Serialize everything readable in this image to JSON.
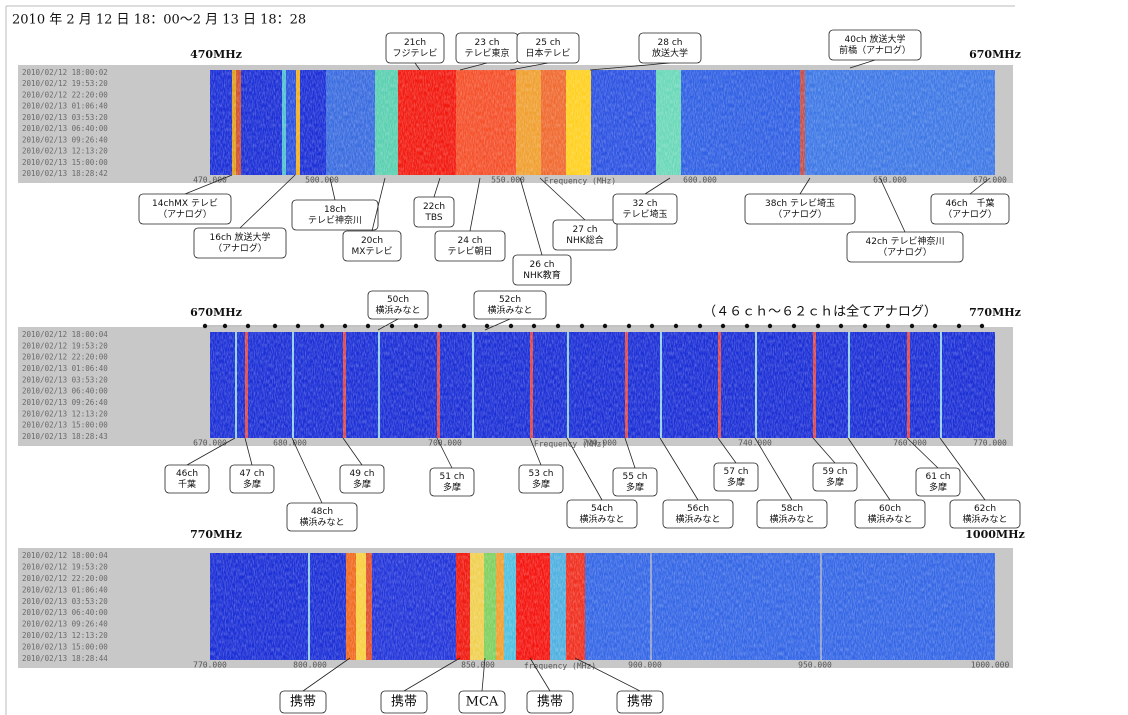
{
  "title": "2010 年 2 月 12 日 18：00～2 月 13 日 18：28",
  "panels": [
    {
      "band_start": "470MHz",
      "band_end": "670MHz",
      "timestamps": [
        "2010/02/12 18:00:02",
        "2010/02/12 19:53:20",
        "2010/02/12 22:20:00",
        "2010/02/13 01:06:40",
        "2010/02/13 03:53:20",
        "2010/02/13 06:40:00",
        "2010/02/13 09:26:40",
        "2010/02/13 12:13:20",
        "2010/02/13 15:00:00",
        "2010/02/13 18:28:42"
      ],
      "x_ticks": [
        "470.000",
        "500.000",
        "550.000",
        "600.000",
        "650.000",
        "670.000"
      ],
      "x_axis_label": "Frequency (MHz)",
      "callouts": [
        {
          "lines": [
            "21ch",
            "フジテレビ"
          ]
        },
        {
          "lines": [
            "23 ch",
            "テレビ東京"
          ]
        },
        {
          "lines": [
            "25 ch",
            "日本テレビ"
          ]
        },
        {
          "lines": [
            "28 ch",
            "放送大学"
          ]
        },
        {
          "lines": [
            "40ch 放送大学",
            "前橋（アナログ）"
          ]
        },
        {
          "lines": [
            "14chMX テレビ",
            "（アナログ）"
          ]
        },
        {
          "lines": [
            "16ch 放送大学",
            "（アナログ）"
          ]
        },
        {
          "lines": [
            "18ch",
            "テレビ神奈川"
          ]
        },
        {
          "lines": [
            "20ch",
            "MXテレビ"
          ]
        },
        {
          "lines": [
            "22ch",
            "TBS"
          ]
        },
        {
          "lines": [
            "24 ch",
            "テレビ朝日"
          ]
        },
        {
          "lines": [
            "26 ch",
            "NHK教育"
          ]
        },
        {
          "lines": [
            "27 ch",
            "NHK総合"
          ]
        },
        {
          "lines": [
            "32 ch",
            "テレビ埼玉"
          ]
        },
        {
          "lines": [
            "38ch テレビ埼玉",
            "（アナログ）"
          ]
        },
        {
          "lines": [
            "42ch テレビ神奈川",
            "（アナログ）"
          ]
        },
        {
          "lines": [
            "46ch　千葉",
            "（アナログ）"
          ]
        }
      ]
    },
    {
      "band_start": "670MHz",
      "band_end": "770MHz",
      "note": "（４６ｃｈ～６２ｃｈは全てアナログ）",
      "timestamps": [
        "2010/02/12 18:00:04",
        "2010/02/12 19:53:20",
        "2010/02/12 22:20:00",
        "2010/02/13 01:06:40",
        "2010/02/13 03:53:20",
        "2010/02/13 06:40:00",
        "2010/02/13 09:26:40",
        "2010/02/13 12:13:20",
        "2010/02/13 15:00:00",
        "2010/02/13 18:28:43"
      ],
      "x_ticks": [
        "670.000",
        "680.000",
        "700.000",
        "720.000",
        "740.000",
        "760.000",
        "770.000"
      ],
      "x_axis_label": "Frequency (MHz)",
      "callouts": [
        {
          "lines": [
            "50ch",
            "横浜みなと"
          ]
        },
        {
          "lines": [
            "52ch",
            "横浜みなと"
          ]
        },
        {
          "lines": [
            "46ch",
            "千葉"
          ]
        },
        {
          "lines": [
            "47 ch",
            "多摩"
          ]
        },
        {
          "lines": [
            "48ch",
            "横浜みなと"
          ]
        },
        {
          "lines": [
            "49 ch",
            "多摩"
          ]
        },
        {
          "lines": [
            "51 ch",
            "多摩"
          ]
        },
        {
          "lines": [
            "53 ch",
            "多摩"
          ]
        },
        {
          "lines": [
            "54ch",
            "横浜みなと"
          ]
        },
        {
          "lines": [
            "55 ch",
            "多摩"
          ]
        },
        {
          "lines": [
            "56ch",
            "横浜みなと"
          ]
        },
        {
          "lines": [
            "57 ch",
            "多摩"
          ]
        },
        {
          "lines": [
            "58ch",
            "横浜みなと"
          ]
        },
        {
          "lines": [
            "59 ch",
            "多摩"
          ]
        },
        {
          "lines": [
            "60ch",
            "横浜みなと"
          ]
        },
        {
          "lines": [
            "61 ch",
            "多摩"
          ]
        },
        {
          "lines": [
            "62ch",
            "横浜みなと"
          ]
        }
      ]
    },
    {
      "band_start": "770MHz",
      "band_end": "1000MHz",
      "timestamps": [
        "2010/02/12 18:00:04",
        "2010/02/12 19:53:20",
        "2010/02/12 22:20:00",
        "2010/02/13 01:06:40",
        "2010/02/13 03:53:20",
        "2010/02/13 06:40:00",
        "2010/02/13 09:26:40",
        "2010/02/13 12:13:20",
        "2010/02/13 15:00:00",
        "2010/02/13 18:28:44"
      ],
      "x_ticks": [
        "770.000",
        "800.000",
        "850.000",
        "900.000",
        "950.000",
        "1000.000"
      ],
      "x_axis_label": "frequency (MHz)",
      "callouts": [
        {
          "lines": [
            "携帯"
          ]
        },
        {
          "lines": [
            "携帯"
          ]
        },
        {
          "lines": [
            "MCA"
          ]
        },
        {
          "lines": [
            "携帯"
          ]
        },
        {
          "lines": [
            "携帯"
          ]
        }
      ]
    }
  ]
}
